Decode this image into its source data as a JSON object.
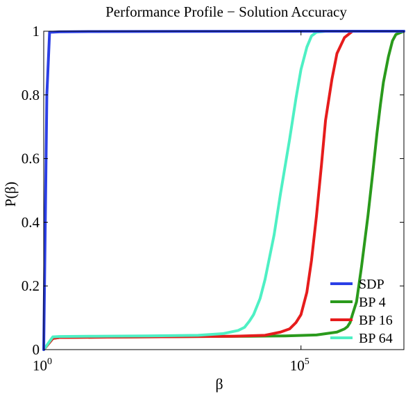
{
  "chart_data": {
    "type": "line",
    "title": "Performance Profile − Solution Accuracy",
    "xlabel": "β",
    "ylabel": "P(β)",
    "xscale": "log10",
    "xlim": [
      1,
      10000000
    ],
    "ylim": [
      0,
      1
    ],
    "grid": false,
    "legend_position": "bottom-right",
    "x_ticks": [
      {
        "value": 1,
        "base": "10",
        "exp": "0"
      },
      {
        "value": 100000,
        "base": "10",
        "exp": "5"
      }
    ],
    "y_ticks": [
      {
        "value": 0,
        "label": "0"
      },
      {
        "value": 0.2,
        "label": "0.2"
      },
      {
        "value": 0.4,
        "label": "0.4"
      },
      {
        "value": 0.6,
        "label": "0.6"
      },
      {
        "value": 0.8,
        "label": "0.8"
      },
      {
        "value": 1,
        "label": "1"
      }
    ],
    "series": [
      {
        "name": "SDP",
        "color": "#2b3fe6",
        "x": [
          1,
          1.15,
          1.3,
          1.5,
          2,
          10,
          100000,
          10000000
        ],
        "y": [
          0,
          0.8,
          0.997,
          0.997,
          0.998,
          0.999,
          1,
          1
        ]
      },
      {
        "name": "BP 4",
        "color": "#2a9a1c",
        "x": [
          1,
          1.5,
          2,
          10,
          100,
          1000,
          10000,
          50000,
          200000,
          500000,
          700000,
          800000,
          900000,
          1000000,
          1200000,
          1500000,
          2000000,
          2500000,
          3000000,
          3500000,
          4000000,
          5000000,
          6000000,
          7000000,
          10000000
        ],
        "y": [
          0,
          0.035,
          0.038,
          0.039,
          0.04,
          0.041,
          0.042,
          0.043,
          0.046,
          0.055,
          0.065,
          0.072,
          0.085,
          0.11,
          0.15,
          0.26,
          0.42,
          0.56,
          0.68,
          0.77,
          0.84,
          0.92,
          0.97,
          0.99,
          1
        ]
      },
      {
        "name": "BP 16",
        "color": "#e61c1c",
        "x": [
          1,
          1.5,
          2,
          10,
          100,
          1000,
          5000,
          20000,
          40000,
          60000,
          80000,
          100000,
          130000,
          160000,
          200000,
          250000,
          300000,
          400000,
          500000,
          700000,
          1000000,
          10000000
        ],
        "y": [
          0,
          0.035,
          0.038,
          0.039,
          0.04,
          0.041,
          0.042,
          0.045,
          0.055,
          0.065,
          0.085,
          0.11,
          0.18,
          0.28,
          0.42,
          0.58,
          0.72,
          0.85,
          0.93,
          0.98,
          1,
          1
        ]
      },
      {
        "name": "BP 64",
        "color": "#4ef0c4",
        "x": [
          1,
          1.5,
          2,
          10,
          100,
          1000,
          3000,
          6000,
          8000,
          10000,
          12000,
          16000,
          20000,
          30000,
          40000,
          60000,
          80000,
          100000,
          130000,
          160000,
          200000,
          300000,
          10000000
        ],
        "y": [
          0,
          0.04,
          0.041,
          0.042,
          0.043,
          0.045,
          0.05,
          0.06,
          0.07,
          0.09,
          0.11,
          0.16,
          0.22,
          0.36,
          0.49,
          0.66,
          0.79,
          0.88,
          0.95,
          0.985,
          0.997,
          1,
          1
        ]
      }
    ]
  }
}
